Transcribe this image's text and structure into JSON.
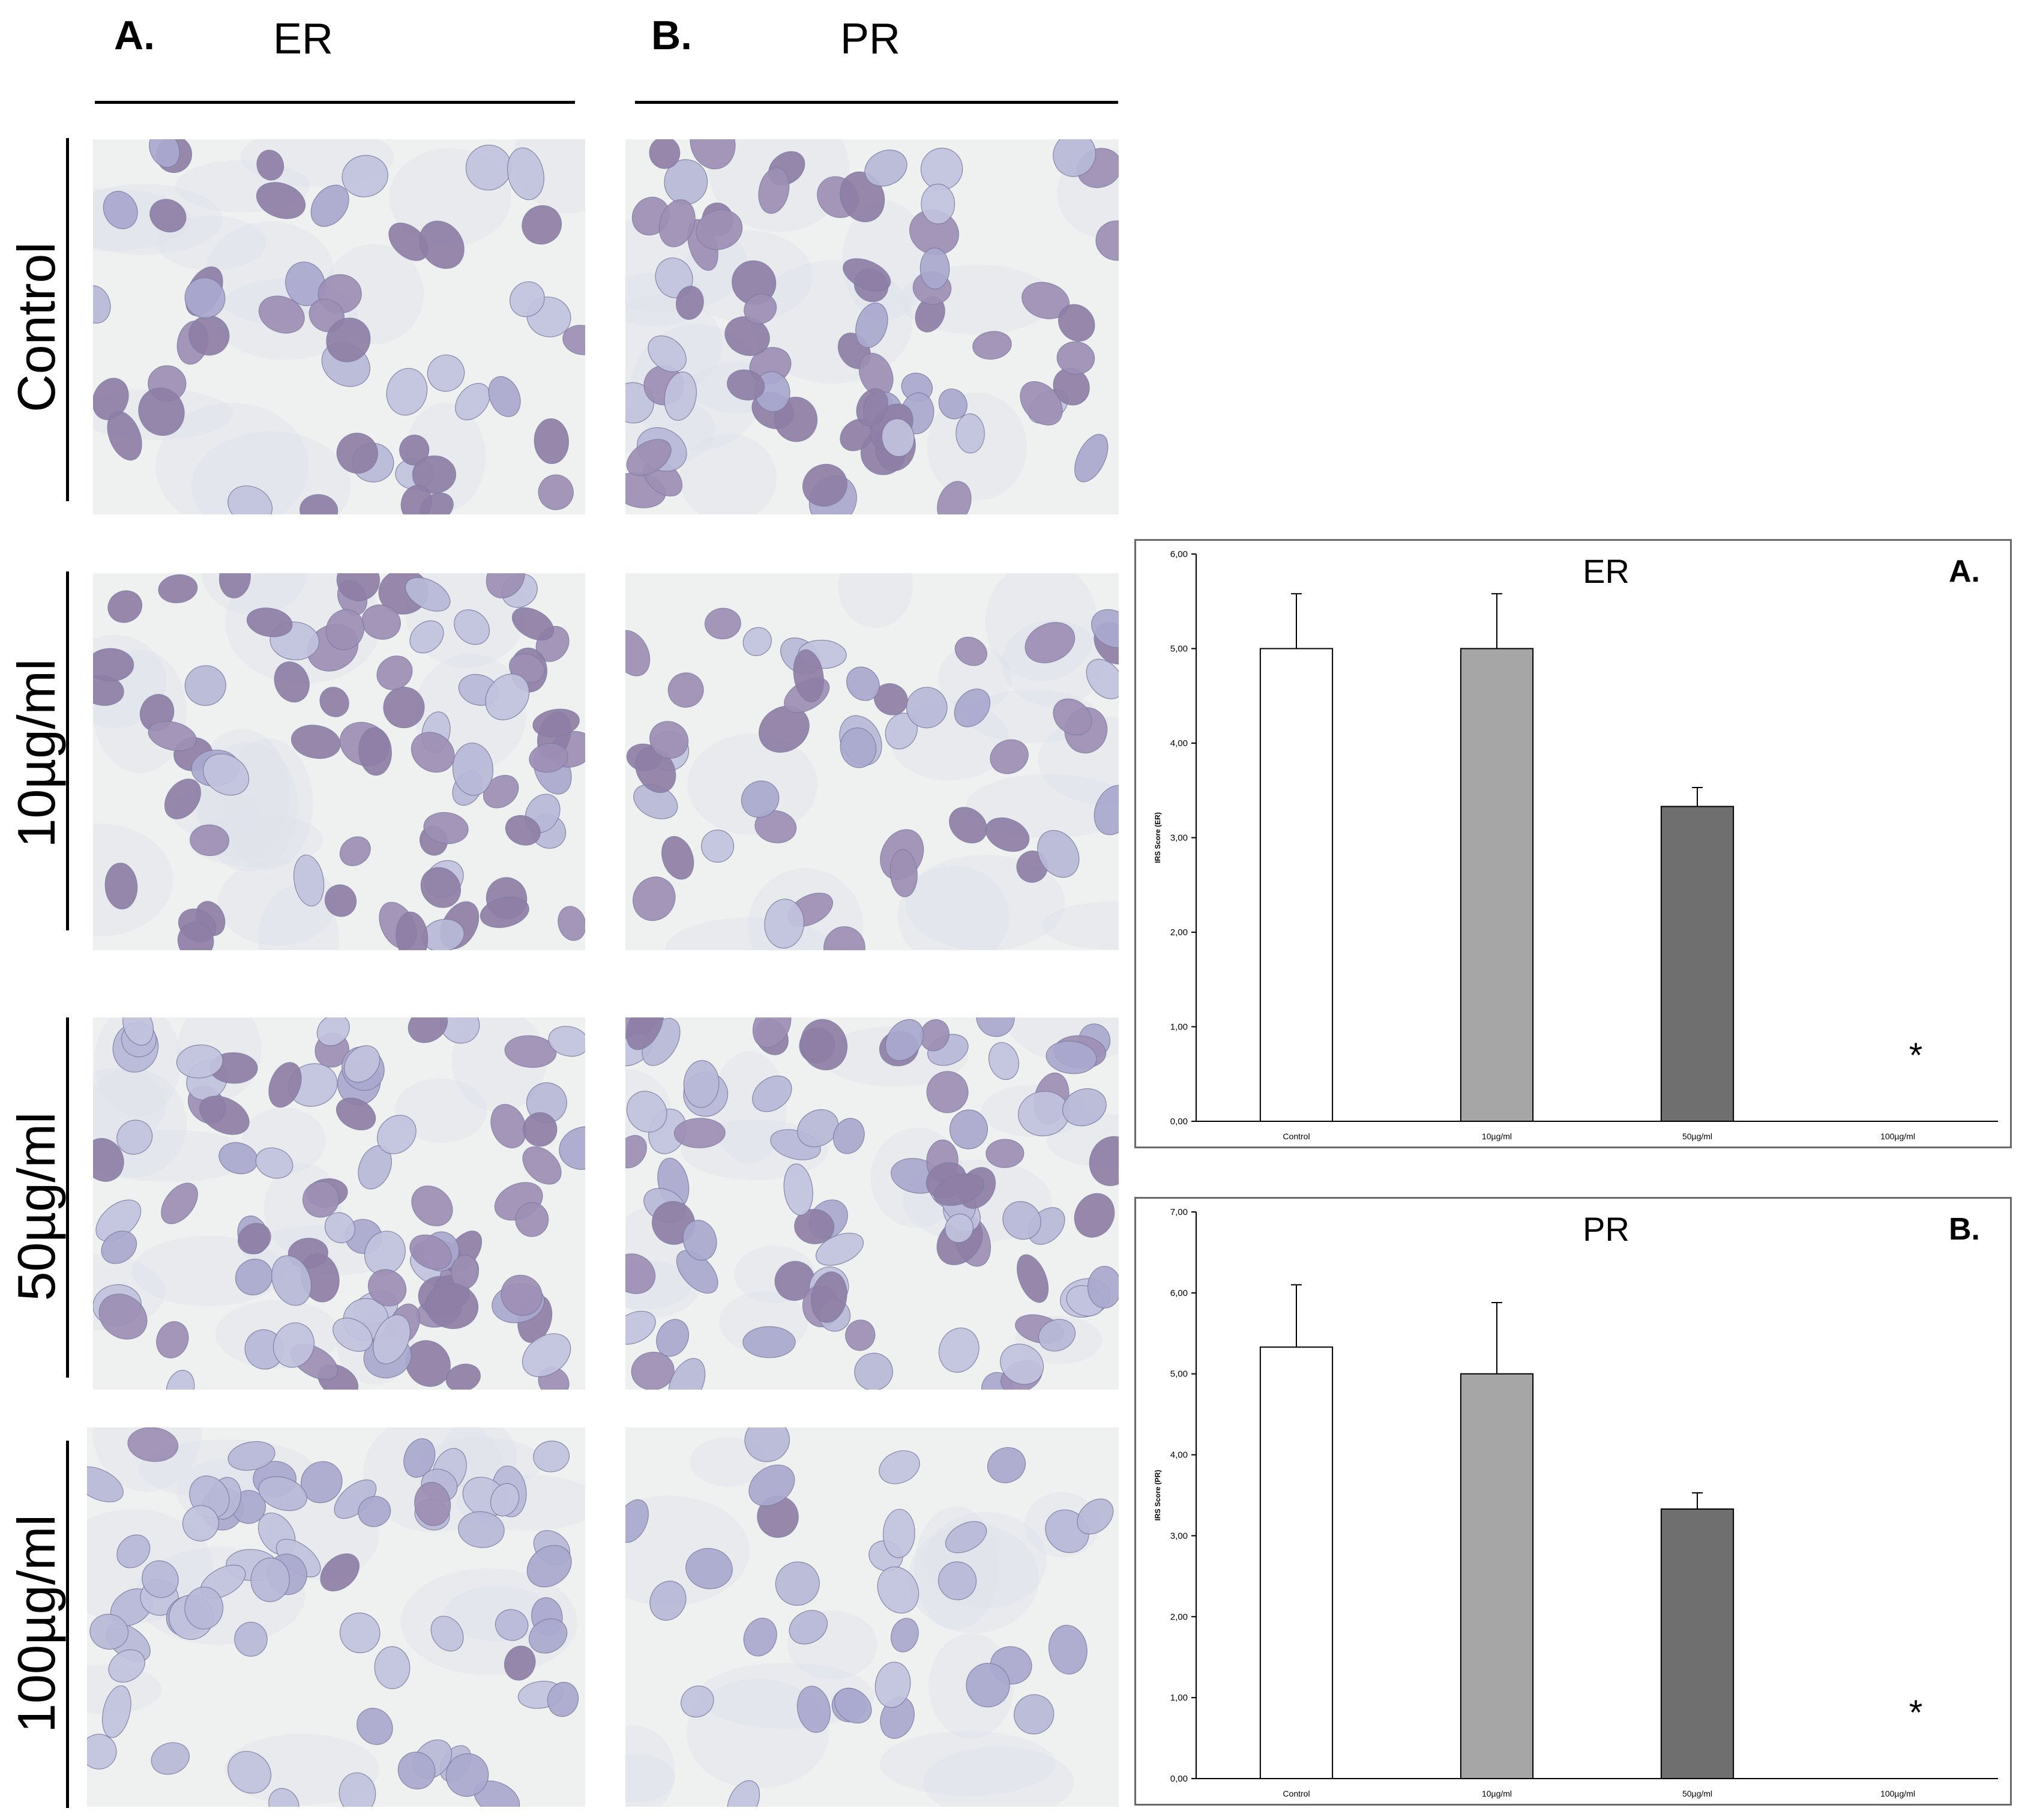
{
  "columns": [
    {
      "letter": "A.",
      "title": "ER"
    },
    {
      "letter": "B.",
      "title": "PR"
    }
  ],
  "rows": [
    "Control",
    "10µg/ml",
    "50µg/ml",
    "100µg/ml"
  ],
  "micrographs": {
    "stain_palette": [
      "#c2c3de",
      "#b8b9d8",
      "#aaa9cf",
      "#9e8fb5",
      "#8f7fa6"
    ],
    "background": "#eef1f0",
    "panels": [
      {
        "name": "er-control"
      },
      {
        "name": "pr-control"
      },
      {
        "name": "er-10"
      },
      {
        "name": "pr-10"
      },
      {
        "name": "er-50"
      },
      {
        "name": "pr-50"
      },
      {
        "name": "er-100"
      },
      {
        "name": "pr-100"
      }
    ]
  },
  "chart_data": [
    {
      "type": "bar",
      "title": "ER",
      "panel_letter": "A.",
      "ylabel": "IRS Score (ER)",
      "xlabel": "",
      "ylim": [
        0,
        6
      ],
      "yticks": [
        "0,00",
        "1,00",
        "2,00",
        "3,00",
        "4,00",
        "5,00",
        "6,00"
      ],
      "categories": [
        "Control",
        "10µg/ml",
        "50µg/ml",
        "100µg/ml"
      ],
      "values": [
        5.0,
        5.0,
        3.33,
        0
      ],
      "errors": [
        0.58,
        0.58,
        0.2,
        0
      ],
      "bar_colors": [
        "#ffffff",
        "#a6a6a6",
        "#6f6f6f",
        "#ffffff"
      ],
      "annotations": [
        {
          "category": "100µg/ml",
          "text": "*"
        }
      ],
      "grid": false,
      "legend": "none"
    },
    {
      "type": "bar",
      "title": "PR",
      "panel_letter": "B.",
      "ylabel": "IRS Score (PR)",
      "xlabel": "",
      "ylim": [
        0,
        7
      ],
      "yticks": [
        "0,00",
        "1,00",
        "2,00",
        "3,00",
        "4,00",
        "5,00",
        "6,00",
        "7,00"
      ],
      "categories": [
        "Control",
        "10µg/ml",
        "50µg/ml",
        "100µg/ml"
      ],
      "values": [
        5.33,
        5.0,
        3.33,
        0
      ],
      "errors": [
        0.77,
        0.88,
        0.2,
        0
      ],
      "bar_colors": [
        "#ffffff",
        "#a6a6a6",
        "#6f6f6f",
        "#ffffff"
      ],
      "annotations": [
        {
          "category": "100µg/ml",
          "text": "*"
        }
      ],
      "grid": false,
      "legend": "none"
    }
  ]
}
